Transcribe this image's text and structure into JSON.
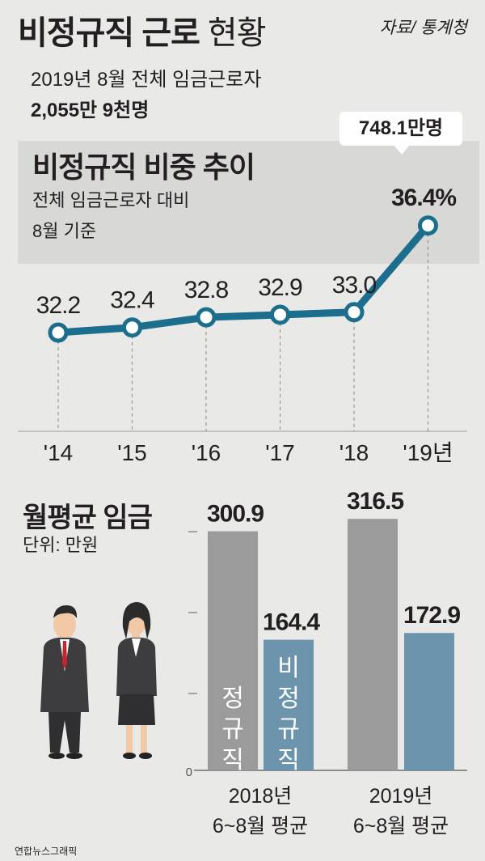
{
  "header": {
    "title_bold": "비정규직 근로",
    "title_light": "현황",
    "source": "자료/ 통계청",
    "sub1": "2019년 8월 전체 임금근로자",
    "sub2": "2,055만 9천명"
  },
  "line_section": {
    "title": "비정규직 비중 추이",
    "sub1": "전체 임금근로자 대비",
    "sub2": "8월 기준",
    "callout": "748.1만명",
    "last_label": "36.4%"
  },
  "bar_section": {
    "title": "월평균 임금",
    "unit": "단위: 만원",
    "label_regular": "정규직",
    "label_irregular": "비정규직",
    "group1_a": "2018년",
    "group1_b": "6~8월 평균",
    "group2_a": "2019년",
    "group2_b": "6~8월 평균",
    "zero": "0"
  },
  "credit": "연합뉴스그래픽",
  "colors": {
    "accent": "#1c6f8c",
    "regular": "#9b9b9b",
    "irregular": "#6d94ad"
  },
  "chart_data": [
    {
      "type": "line",
      "title": "비정규직 비중 추이",
      "categories": [
        "'14",
        "'15",
        "'16",
        "'17",
        "'18",
        "'19년"
      ],
      "values": [
        32.2,
        32.4,
        32.8,
        32.9,
        33.0,
        36.4
      ],
      "value_labels": [
        "32.2",
        "32.4",
        "32.8",
        "32.9",
        "33.0",
        "36.4%"
      ],
      "unit": "%"
    },
    {
      "type": "bar",
      "title": "월평균 임금",
      "categories": [
        "2018년 6~8월 평균",
        "2019년 6~8월 평균"
      ],
      "series": [
        {
          "name": "정규직",
          "values": [
            300.9,
            316.5
          ]
        },
        {
          "name": "비정규직",
          "values": [
            164.4,
            172.9
          ]
        }
      ],
      "value_labels": [
        [
          "300.9",
          "316.5"
        ],
        [
          "164.4",
          "172.9"
        ]
      ]
    }
  ]
}
